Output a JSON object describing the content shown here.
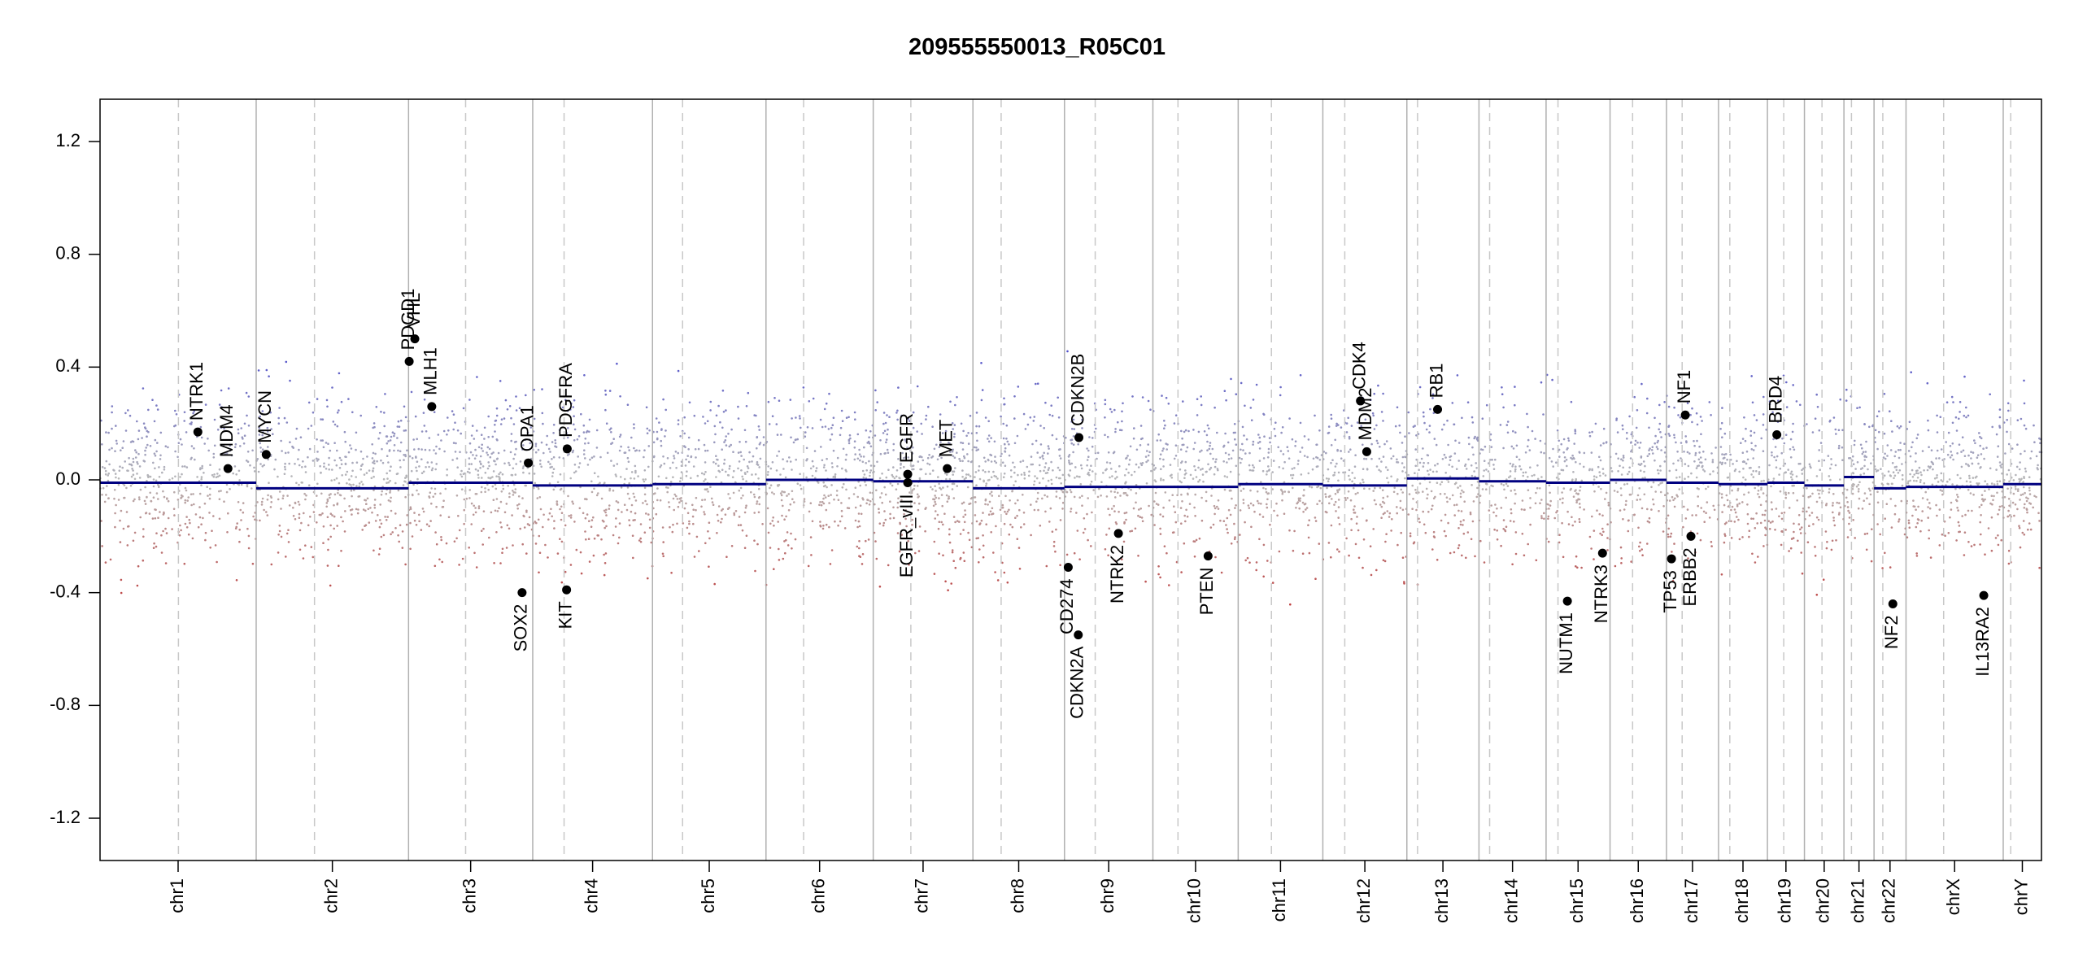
{
  "chart_data": {
    "type": "scatter",
    "title": "209555550013_R05C01",
    "xlabel": "",
    "ylabel": "",
    "ylim": [
      -1.35,
      1.35
    ],
    "y_ticks": [
      1.2,
      0.8,
      0.4,
      0.0,
      -0.4,
      -0.8,
      -1.2
    ],
    "y_tick_labels": [
      "1.2",
      "0.8",
      "0.4",
      "0.0",
      "-0.4",
      "-0.8",
      "-1.2"
    ],
    "x_unit": "Mb (cumulative genome position)",
    "xlim": [
      0,
      3096
    ],
    "grid": false,
    "legend": "none",
    "colors": {
      "gain": "#3a3ad0",
      "loss": "#c02020",
      "neutral": "#b8b8b8",
      "segment": "#000080",
      "boundary": "#b0b0b0",
      "centromere": "#c8c8c8",
      "gene": "#000000"
    },
    "chromosomes": [
      {
        "name": "chr1",
        "start": 0,
        "len": 249,
        "centromere": 125,
        "mean": -0.01
      },
      {
        "name": "chr2",
        "start": 249,
        "len": 243,
        "centromere": 93,
        "mean": -0.03
      },
      {
        "name": "chr3",
        "start": 492,
        "len": 198,
        "centromere": 91,
        "mean": -0.01
      },
      {
        "name": "chr4",
        "start": 690,
        "len": 191,
        "centromere": 50,
        "mean": -0.02
      },
      {
        "name": "chr5",
        "start": 881,
        "len": 181,
        "centromere": 48,
        "mean": -0.015
      },
      {
        "name": "chr6",
        "start": 1062,
        "len": 171,
        "centromere": 60,
        "mean": 0.0
      },
      {
        "name": "chr7",
        "start": 1233,
        "len": 159,
        "centromere": 60,
        "mean": -0.005
      },
      {
        "name": "chr8",
        "start": 1392,
        "len": 146,
        "centromere": 45,
        "mean": -0.03
      },
      {
        "name": "chr9",
        "start": 1538,
        "len": 141,
        "centromere": 49,
        "mean": -0.025
      },
      {
        "name": "chr10",
        "start": 1679,
        "len": 136,
        "centromere": 40,
        "mean": -0.025
      },
      {
        "name": "chr11",
        "start": 1815,
        "len": 135,
        "centromere": 53,
        "mean": -0.015
      },
      {
        "name": "chr12",
        "start": 1950,
        "len": 134,
        "centromere": 35,
        "mean": -0.02
      },
      {
        "name": "chr13",
        "start": 2084,
        "len": 115,
        "centromere": 17,
        "mean": 0.005
      },
      {
        "name": "chr14",
        "start": 2199,
        "len": 107,
        "centromere": 17,
        "mean": -0.005
      },
      {
        "name": "chr15",
        "start": 2306,
        "len": 102,
        "centromere": 19,
        "mean": -0.01
      },
      {
        "name": "chr16",
        "start": 2408,
        "len": 90,
        "centromere": 36,
        "mean": 0.0
      },
      {
        "name": "chr17",
        "start": 2498,
        "len": 83,
        "centromere": 25,
        "mean": -0.01
      },
      {
        "name": "chr18",
        "start": 2581,
        "len": 78,
        "centromere": 18,
        "mean": -0.015
      },
      {
        "name": "chr19",
        "start": 2659,
        "len": 59,
        "centromere": 26,
        "mean": -0.01
      },
      {
        "name": "chr20",
        "start": 2718,
        "len": 63,
        "centromere": 28,
        "mean": -0.02
      },
      {
        "name": "chr21",
        "start": 2781,
        "len": 48,
        "centromere": 12,
        "mean": 0.01
      },
      {
        "name": "chr22",
        "start": 2829,
        "len": 51,
        "centromere": 14,
        "mean": -0.03
      },
      {
        "name": "chrX",
        "start": 2880,
        "len": 155,
        "centromere": 60,
        "mean": -0.025
      },
      {
        "name": "chrY",
        "start": 3035,
        "len": 61,
        "centromere": 12,
        "mean": -0.015
      }
    ],
    "genes": [
      {
        "name": "NTRK1",
        "x": 156,
        "y": 0.17,
        "label": "above"
      },
      {
        "name": "MDM4",
        "x": 204,
        "y": 0.04,
        "label": "above"
      },
      {
        "name": "MYCN",
        "x": 265,
        "y": 0.09,
        "label": "above"
      },
      {
        "name": "PDGD1",
        "x": 493,
        "y": 0.42,
        "label": "above"
      },
      {
        "name": "VHL",
        "x": 502,
        "y": 0.5,
        "label": "above"
      },
      {
        "name": "MLH1",
        "x": 529,
        "y": 0.26,
        "label": "above"
      },
      {
        "name": "OPA1",
        "x": 683,
        "y": 0.06,
        "label": "above"
      },
      {
        "name": "SOX2",
        "x": 673,
        "y": -0.4,
        "label": "below"
      },
      {
        "name": "PDGFRA",
        "x": 745,
        "y": 0.11,
        "label": "above"
      },
      {
        "name": "KIT",
        "x": 744,
        "y": -0.39,
        "label": "below"
      },
      {
        "name": "EGFR",
        "x": 1288,
        "y": 0.02,
        "label": "above"
      },
      {
        "name": "EGFR_vIII",
        "x": 1288,
        "y": -0.01,
        "label": "below"
      },
      {
        "name": "MET",
        "x": 1351,
        "y": 0.04,
        "label": "above"
      },
      {
        "name": "CD274",
        "x": 1544,
        "y": -0.31,
        "label": "below"
      },
      {
        "name": "CDKN2A",
        "x": 1560,
        "y": -0.55,
        "label": "below"
      },
      {
        "name": "CDKN2B",
        "x": 1561,
        "y": 0.15,
        "label": "above"
      },
      {
        "name": "NTRK2",
        "x": 1624,
        "y": -0.19,
        "label": "below"
      },
      {
        "name": "PTEN",
        "x": 1767,
        "y": -0.27,
        "label": "below"
      },
      {
        "name": "MDM2",
        "x": 2020,
        "y": 0.1,
        "label": "above"
      },
      {
        "name": "CDK4",
        "x": 2010,
        "y": 0.28,
        "label": "above"
      },
      {
        "name": "RB1",
        "x": 2133,
        "y": 0.25,
        "label": "above"
      },
      {
        "name": "NUTM1",
        "x": 2340,
        "y": -0.43,
        "label": "below"
      },
      {
        "name": "NTRK3",
        "x": 2396,
        "y": -0.26,
        "label": "below"
      },
      {
        "name": "TP53",
        "x": 2506,
        "y": -0.28,
        "label": "below"
      },
      {
        "name": "NF1",
        "x": 2528,
        "y": 0.23,
        "label": "above"
      },
      {
        "name": "ERBB2",
        "x": 2537,
        "y": -0.2,
        "label": "below"
      },
      {
        "name": "BRD4",
        "x": 2674,
        "y": 0.16,
        "label": "above"
      },
      {
        "name": "NF2",
        "x": 2859,
        "y": -0.44,
        "label": "below"
      },
      {
        "name": "IL13RA2",
        "x": 3004,
        "y": -0.41,
        "label": "below"
      }
    ]
  }
}
